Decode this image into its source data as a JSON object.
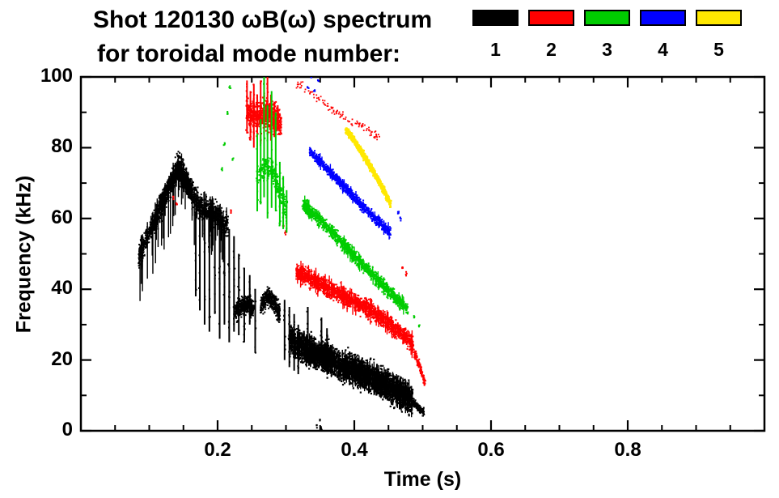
{
  "title": {
    "line1": "Shot 120130 ωB(ω) spectrum",
    "line2": "for toroidal mode number:"
  },
  "chart_data": {
    "type": "scatter",
    "title": "Shot 120130 ωB(ω) spectrum for toroidal mode number",
    "xlabel": "Time (s)",
    "ylabel": "Frequency (kHz)",
    "xlim": [
      0.0,
      1.0
    ],
    "ylim": [
      0,
      100
    ],
    "xticks": [
      0.2,
      0.4,
      0.6,
      0.8
    ],
    "yticks": [
      0,
      20,
      40,
      60,
      80,
      100
    ],
    "x_minor_step": 0.05,
    "y_minor_step": 10,
    "grid": false,
    "legend_position": "top-right",
    "legend": [
      {
        "label": "1",
        "color": "#000000"
      },
      {
        "label": "2",
        "color": "#ff0000"
      },
      {
        "label": "3",
        "color": "#00cc00"
      },
      {
        "label": "4",
        "color": "#0000ff"
      },
      {
        "label": "5",
        "color": "#ffe800"
      }
    ],
    "series": [
      {
        "name": "1",
        "color": "#000000",
        "bands": [
          {
            "pts": [
              [
                0.085,
                49
              ],
              [
                0.1,
                56
              ],
              [
                0.115,
                62
              ],
              [
                0.13,
                69
              ],
              [
                0.142,
                75
              ],
              [
                0.153,
                72
              ],
              [
                0.165,
                66
              ],
              [
                0.178,
                63
              ],
              [
                0.19,
                62
              ],
              [
                0.205,
                60
              ],
              [
                0.215,
                58
              ]
            ],
            "spread": 5.5,
            "density": 1500,
            "pt": 2,
            "spikes": {
              "prob": 0.05,
              "up": 5,
              "down": 14
            }
          },
          {
            "pts": [
              [
                0.115,
                64
              ],
              [
                0.13,
                70
              ],
              [
                0.142,
                73
              ],
              [
                0.153,
                70
              ],
              [
                0.163,
                67
              ]
            ],
            "spread": 3.5,
            "density": 800,
            "pt": 2
          },
          {
            "pts": [
              [
                0.225,
                33
              ],
              [
                0.235,
                35
              ],
              [
                0.246,
                36
              ],
              [
                0.253,
                34
              ]
            ],
            "spread": 4.5,
            "density": 420,
            "pt": 2
          },
          {
            "pts": [
              [
                0.263,
                35
              ],
              [
                0.273,
                38
              ],
              [
                0.283,
                36
              ],
              [
                0.291,
                33
              ]
            ],
            "spread": 4.5,
            "density": 420,
            "pt": 2
          },
          {
            "pts": [
              [
                0.305,
                26
              ],
              [
                0.325,
                23.5
              ],
              [
                0.345,
                21.5
              ],
              [
                0.365,
                20
              ],
              [
                0.385,
                18.5
              ],
              [
                0.405,
                16.5
              ],
              [
                0.425,
                15
              ],
              [
                0.445,
                13
              ],
              [
                0.465,
                11
              ],
              [
                0.485,
                8.5
              ]
            ],
            "spread": 6.5,
            "density": 3000,
            "pt": 2.2,
            "spikes": {
              "prob": 0.09,
              "up": 5,
              "down": 5
            }
          },
          {
            "pts": [
              [
                0.486,
                8
              ],
              [
                0.495,
                6.5
              ],
              [
                0.502,
                5
              ]
            ],
            "spread": 2,
            "density": 100,
            "pt": 2
          }
        ],
        "vlines": [
          [
            0.168,
            62,
            38
          ],
          [
            0.174,
            64,
            34
          ],
          [
            0.181,
            61,
            30
          ],
          [
            0.188,
            62,
            28
          ],
          [
            0.196,
            60,
            33
          ],
          [
            0.203,
            60,
            26
          ],
          [
            0.21,
            58,
            30
          ],
          [
            0.217,
            57,
            25
          ],
          [
            0.224,
            55,
            28
          ],
          [
            0.231,
            50,
            27
          ],
          [
            0.239,
            46,
            25
          ],
          [
            0.247,
            44,
            30
          ],
          [
            0.255,
            40,
            22
          ],
          [
            0.298,
            37,
            20
          ],
          [
            0.305,
            35,
            18
          ],
          [
            0.312,
            33,
            17
          ],
          [
            0.318,
            30,
            16
          ],
          [
            0.332,
            35,
            24
          ],
          [
            0.352,
            32,
            22
          ],
          [
            0.36,
            29,
            21
          ]
        ],
        "dots": [
          [
            0.345,
            1.5
          ],
          [
            0.35,
            3
          ],
          [
            0.352,
            0.5
          ],
          [
            0.21,
            45
          ],
          [
            0.216,
            47
          ]
        ]
      },
      {
        "name": "2",
        "color": "#ff0000",
        "bands": [
          {
            "pts": [
              [
                0.242,
                90
              ],
              [
                0.255,
                89
              ],
              [
                0.268,
                90
              ],
              [
                0.282,
                88
              ],
              [
                0.293,
                87
              ]
            ],
            "spread": 6.5,
            "density": 700,
            "pt": 2
          },
          {
            "pts": [
              [
                0.315,
                98
              ],
              [
                0.34,
                95
              ],
              [
                0.365,
                91
              ],
              [
                0.39,
                88
              ],
              [
                0.415,
                85.5
              ],
              [
                0.437,
                83
              ]
            ],
            "spread": 2.2,
            "density": 110,
            "pt": 1.8
          },
          {
            "pts": [
              [
                0.315,
                45
              ],
              [
                0.335,
                43
              ],
              [
                0.355,
                41
              ],
              [
                0.375,
                39
              ],
              [
                0.395,
                37
              ],
              [
                0.415,
                35
              ],
              [
                0.435,
                32.5
              ],
              [
                0.455,
                29.5
              ],
              [
                0.472,
                27
              ],
              [
                0.487,
                24
              ]
            ],
            "spread": 3.8,
            "density": 1700,
            "pt": 2,
            "spikes": {
              "prob": 0.05,
              "up": 4,
              "down": 4
            }
          },
          {
            "pts": [
              [
                0.488,
                22
              ],
              [
                0.496,
                18
              ],
              [
                0.504,
                13
              ]
            ],
            "spread": 2,
            "density": 130,
            "pt": 2
          }
        ],
        "vlines": [
          [
            0.243,
            99,
            84
          ],
          [
            0.248,
            96,
            82
          ],
          [
            0.253,
            98,
            80
          ],
          [
            0.258,
            95,
            83
          ],
          [
            0.263,
            99,
            81
          ],
          [
            0.268,
            96,
            84
          ],
          [
            0.273,
            100,
            86
          ],
          [
            0.278,
            95,
            82
          ],
          [
            0.283,
            93,
            83
          ],
          [
            0.288,
            92,
            85
          ]
        ],
        "dots": [
          [
            0.135,
            66
          ],
          [
            0.14,
            64
          ],
          [
            0.296,
            58
          ],
          [
            0.3,
            56
          ],
          [
            0.22,
            62
          ],
          [
            0.47,
            46
          ],
          [
            0.476,
            44
          ]
        ]
      },
      {
        "name": "3",
        "color": "#00cc00",
        "bands": [
          {
            "pts": [
              [
                0.325,
                64
              ],
              [
                0.345,
                60.5
              ],
              [
                0.365,
                56.5
              ],
              [
                0.385,
                52.5
              ],
              [
                0.405,
                48.5
              ],
              [
                0.425,
                44.5
              ],
              [
                0.445,
                40.5
              ],
              [
                0.465,
                36.5
              ],
              [
                0.478,
                34.5
              ]
            ],
            "spread": 3,
            "density": 1300,
            "pt": 2,
            "spikes": {
              "prob": 0.04,
              "up": 3,
              "down": 3
            }
          },
          {
            "pts": [
              [
                0.26,
                72
              ],
              [
                0.27,
                75
              ],
              [
                0.28,
                74
              ],
              [
                0.29,
                68
              ],
              [
                0.3,
                62
              ]
            ],
            "spread": 5,
            "density": 260,
            "pt": 2
          }
        ],
        "vlines": [
          [
            0.258,
            84,
            62
          ],
          [
            0.263,
            88,
            64
          ],
          [
            0.268,
            100,
            66
          ],
          [
            0.273,
            92,
            60
          ],
          [
            0.279,
            96,
            63
          ],
          [
            0.285,
            90,
            62
          ],
          [
            0.291,
            76,
            58
          ],
          [
            0.296,
            72,
            57
          ],
          [
            0.301,
            68,
            56
          ]
        ],
        "dots": [
          [
            0.206,
            74
          ],
          [
            0.21,
            81
          ],
          [
            0.214,
            90
          ],
          [
            0.218,
            97
          ],
          [
            0.222,
            77
          ],
          [
            0.488,
            32
          ],
          [
            0.495,
            30
          ]
        ]
      },
      {
        "name": "4",
        "color": "#0000ff",
        "bands": [
          {
            "pts": [
              [
                0.335,
                79
              ],
              [
                0.355,
                75
              ],
              [
                0.375,
                71
              ],
              [
                0.395,
                67
              ],
              [
                0.415,
                63
              ],
              [
                0.435,
                59
              ],
              [
                0.453,
                56
              ]
            ],
            "spread": 2.2,
            "density": 900,
            "pt": 2,
            "spikes": {
              "prob": 0.03,
              "up": 2.5,
              "down": 2.5
            }
          }
        ],
        "vlines": [],
        "dots": [
          [
            0.332,
            97
          ],
          [
            0.337,
            100
          ],
          [
            0.342,
            96
          ],
          [
            0.347,
            99
          ],
          [
            0.464,
            62
          ],
          [
            0.468,
            60
          ]
        ]
      },
      {
        "name": "5",
        "color": "#ffe800",
        "bands": [
          {
            "pts": [
              [
                0.388,
                85
              ],
              [
                0.4,
                82
              ],
              [
                0.412,
                78.5
              ],
              [
                0.424,
                74.5
              ],
              [
                0.436,
                70.5
              ],
              [
                0.447,
                66.5
              ],
              [
                0.453,
                64
              ]
            ],
            "spread": 1.5,
            "density": 1000,
            "pt": 2.4
          }
        ],
        "vlines": [],
        "dots": []
      }
    ]
  }
}
